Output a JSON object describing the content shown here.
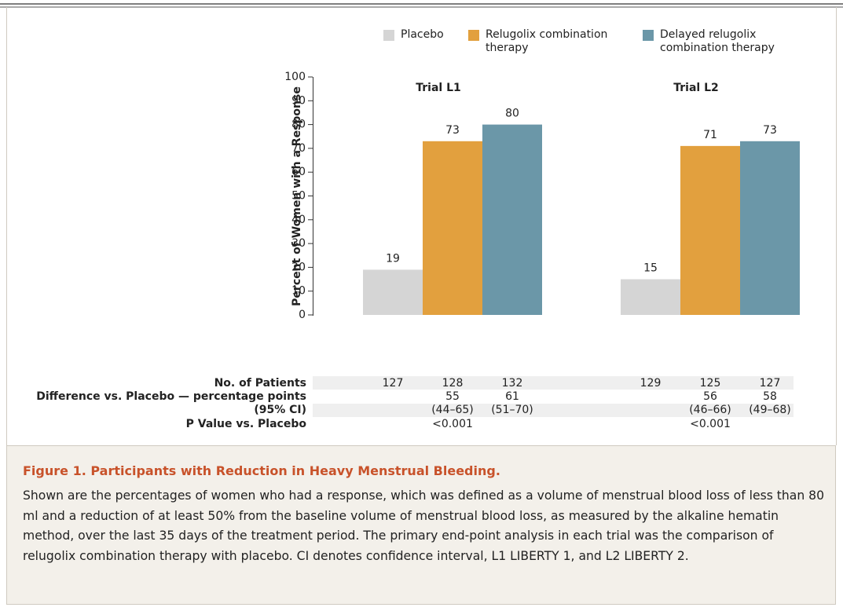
{
  "chart_data": {
    "type": "bar",
    "y_label": "Percent of Women with a Response",
    "categories": [
      "Trial L1",
      "Trial L2"
    ],
    "series": [
      {
        "name": "Placebo",
        "color": "#d5d5d5",
        "values": [
          19,
          15
        ]
      },
      {
        "name": "Relugolix combination therapy",
        "color": "#e2a03e",
        "values": [
          73,
          71
        ]
      },
      {
        "name": "Delayed relugolix combination therapy",
        "color": "#6b97a8",
        "values": [
          80,
          73
        ]
      }
    ],
    "ylim": [
      0,
      100
    ],
    "yticks": [
      0,
      10,
      20,
      30,
      40,
      50,
      60,
      70,
      80,
      90,
      100
    ],
    "table": {
      "patients": {
        "label": "No. of Patients",
        "values": [
          [
            127,
            128,
            132
          ],
          [
            129,
            125,
            127
          ]
        ]
      },
      "difference": {
        "label": [
          "Difference vs. Placebo — percentage points",
          "(95% CI)"
        ],
        "values": [
          [
            55,
            61
          ],
          [
            56,
            58
          ]
        ],
        "ci": [
          [
            "(44–65)",
            "(51–70)"
          ],
          [
            "(46–66)",
            "(49–68)"
          ]
        ]
      },
      "p_value": {
        "label": "P Value vs. Placebo",
        "values": [
          "<0.001",
          "<0.001"
        ]
      }
    }
  },
  "caption": {
    "title": "Figure 1. Participants with Reduction in Heavy Menstrual Bleeding.",
    "text": "Shown are the percentages of women who had a response, which was defined as a volume of menstrual blood loss of less than 80 ml and a reduction of at least 50% from the baseline volume of menstrual blood loss, as measured by the alkaline hematin method, over the last 35 days of the treatment period. The primary end-point analysis in each trial was the comparison of relugolix combination therapy with placebo. CI denotes confidence interval, L1 LIBERTY 1, and L2 LIBERTY 2."
  }
}
